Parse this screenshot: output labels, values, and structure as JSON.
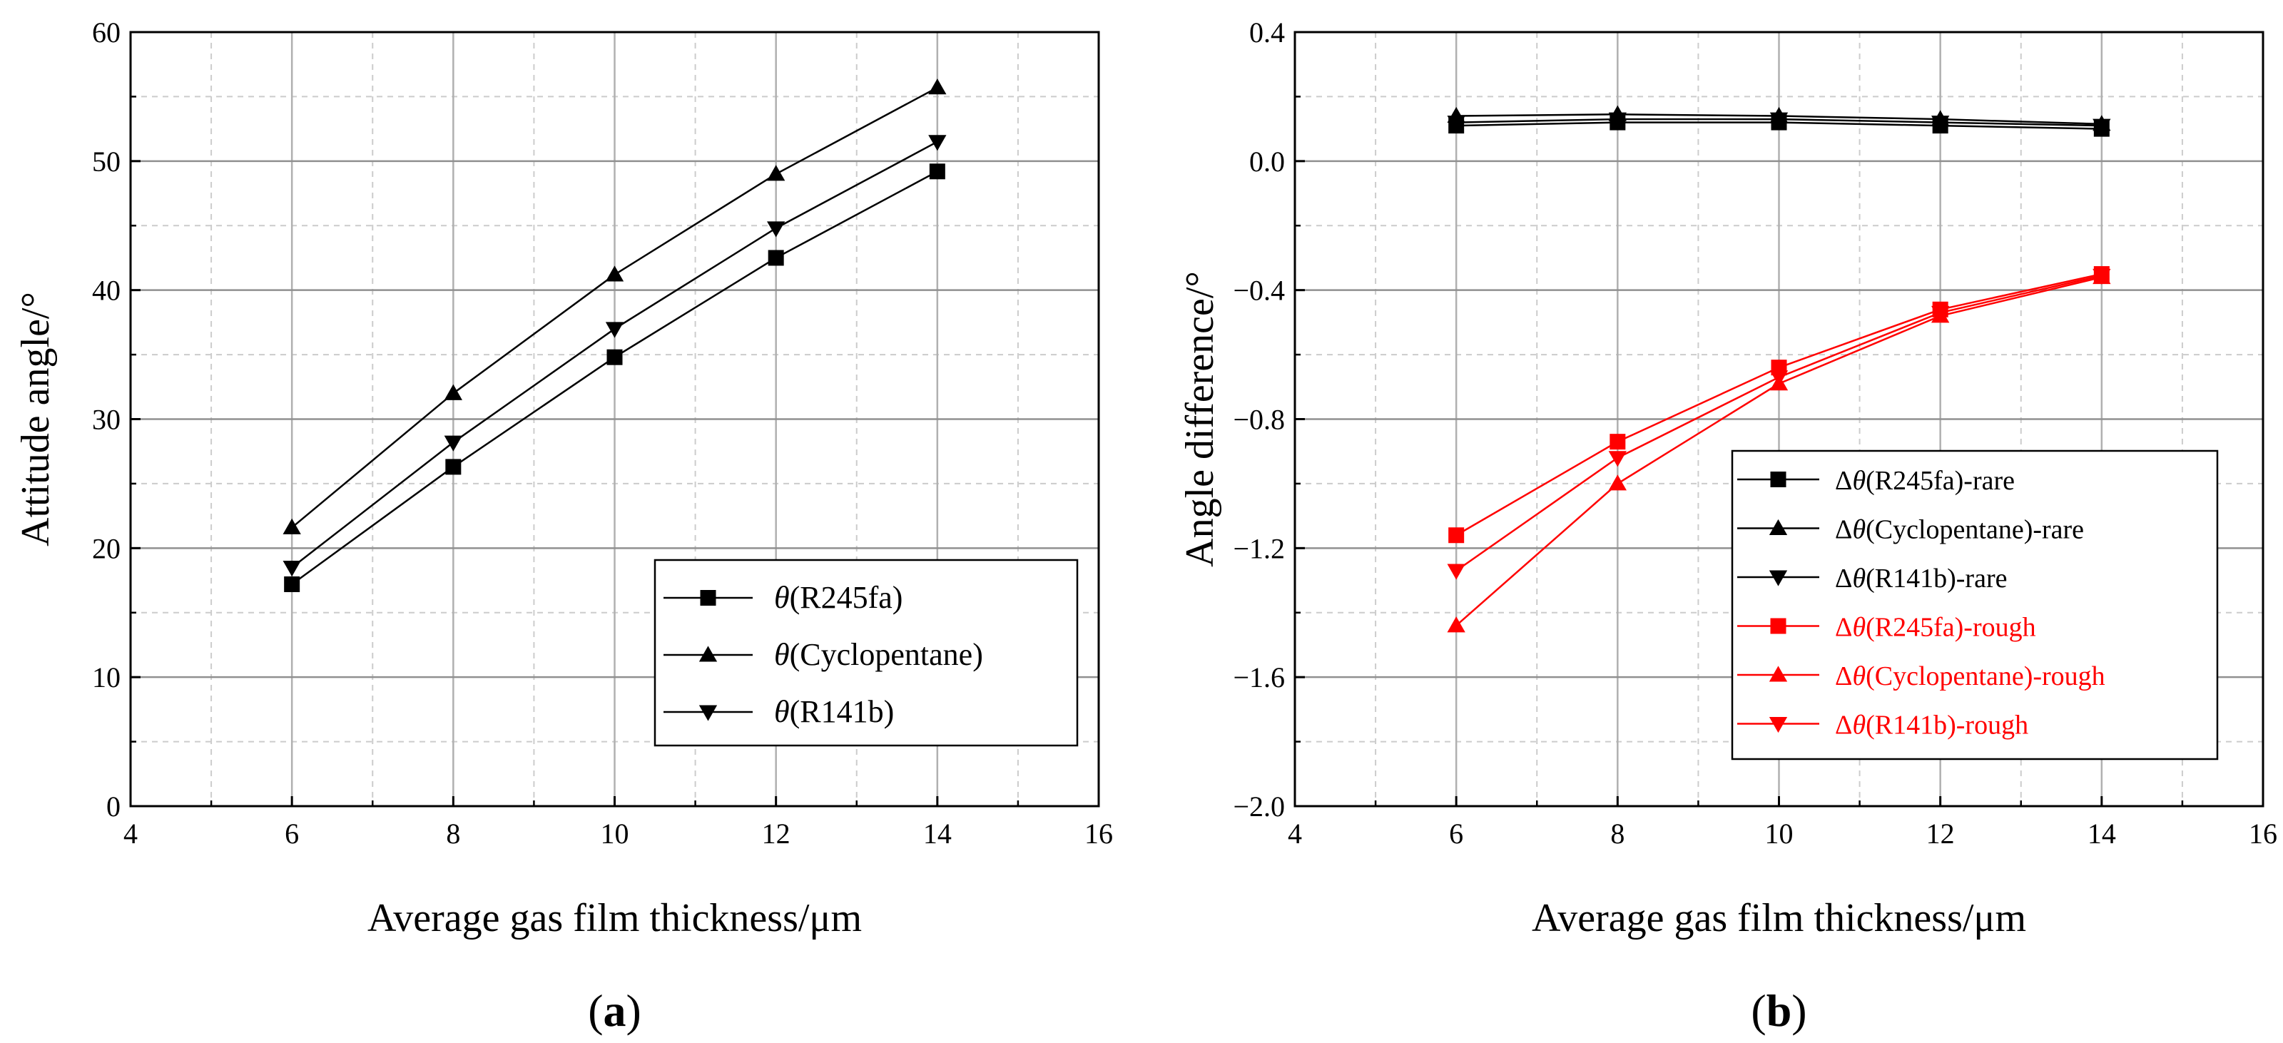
{
  "chart_data": [
    {
      "type": "line",
      "panel": "a",
      "caption_label": "a",
      "xlabel": "Average gas film thickness/μm",
      "ylabel": "Attitude angle/°",
      "xlim": [
        4,
        16
      ],
      "ylim": [
        0,
        60
      ],
      "xticks": [
        4,
        6,
        8,
        10,
        12,
        14,
        16
      ],
      "yticks": [
        0,
        10,
        20,
        30,
        40,
        50,
        60
      ],
      "ytick_labels": [
        "0",
        "10",
        "20",
        "30",
        "40",
        "50",
        "60"
      ],
      "grid": true,
      "legend_position": "bottom-right",
      "x": [
        6,
        8,
        10,
        12,
        14
      ],
      "series": [
        {
          "name": "(R245fa)",
          "symbol": "θ",
          "marker": "square",
          "color": "#000000",
          "values": [
            17.2,
            26.3,
            34.8,
            42.5,
            49.2
          ]
        },
        {
          "name": "(Cyclopentane)",
          "symbol": "θ",
          "marker": "triangle-up",
          "color": "#000000",
          "values": [
            21.6,
            32.0,
            41.2,
            49.0,
            55.7
          ]
        },
        {
          "name": "(R141b)",
          "symbol": "θ",
          "marker": "triangle-down",
          "color": "#000000",
          "values": [
            18.5,
            28.2,
            37.0,
            44.8,
            51.5
          ]
        }
      ]
    },
    {
      "type": "line",
      "panel": "b",
      "caption_label": "b",
      "xlabel": "Average gas film thickness/μm",
      "ylabel": "Angle difference/°",
      "xlim": [
        4,
        16
      ],
      "ylim": [
        -2.0,
        0.4
      ],
      "xticks": [
        4,
        6,
        8,
        10,
        12,
        14,
        16
      ],
      "yticks": [
        -2.0,
        -1.6,
        -1.2,
        -0.8,
        -0.4,
        0.0,
        0.4
      ],
      "ytick_labels": [
        "−2.0",
        "−1.6",
        "−1.2",
        "−0.8",
        "−0.4",
        "0.0",
        "0.4"
      ],
      "grid": true,
      "legend_position": "bottom-right",
      "x": [
        6,
        8,
        10,
        12,
        14
      ],
      "series": [
        {
          "name": "(R245fa)-rare",
          "symbol": "Δθ",
          "marker": "square",
          "color": "#000000",
          "values": [
            0.11,
            0.12,
            0.12,
            0.11,
            0.1
          ]
        },
        {
          "name": "(Cyclopentane)-rare",
          "symbol": "Δθ",
          "marker": "triangle-up",
          "color": "#000000",
          "values": [
            0.14,
            0.145,
            0.14,
            0.13,
            0.115
          ]
        },
        {
          "name": "(R141b)-rare",
          "symbol": "Δθ",
          "marker": "triangle-down",
          "color": "#000000",
          "values": [
            0.12,
            0.13,
            0.13,
            0.12,
            0.11
          ]
        },
        {
          "name": "(R245fa)-rough",
          "symbol": "Δθ",
          "marker": "square",
          "color": "#ff0000",
          "values": [
            -1.16,
            -0.87,
            -0.64,
            -0.46,
            -0.35
          ]
        },
        {
          "name": "(Cyclopentane)-rough",
          "symbol": "Δθ",
          "marker": "triangle-up",
          "color": "#ff0000",
          "values": [
            -1.44,
            -1.0,
            -0.69,
            -0.48,
            -0.36
          ]
        },
        {
          "name": "(R141b)-rough",
          "symbol": "Δθ",
          "marker": "triangle-down",
          "color": "#ff0000",
          "values": [
            -1.27,
            -0.92,
            -0.67,
            -0.47,
            -0.355
          ]
        }
      ]
    }
  ]
}
